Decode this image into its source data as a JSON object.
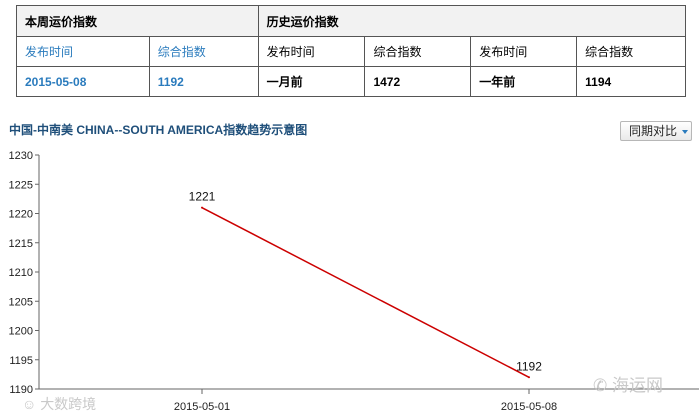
{
  "table": {
    "weekly_header": "本周运价指数",
    "history_header": "历史运价指数",
    "col_publish_time": "发布时间",
    "col_index": "综合指数",
    "current_date": "2015-05-08",
    "current_index": "1192",
    "month_ago_label": "一月前",
    "month_ago_index": "1472",
    "year_ago_label": "一年前",
    "year_ago_index": "1194"
  },
  "chart_header": {
    "title": "中国-中南美 CHINA--SOUTH AMERICA指数趋势示意图",
    "compare_button": "同期对比"
  },
  "chart_data": {
    "type": "line",
    "title": "中国-中南美 CHINA--SOUTH AMERICA指数趋势示意图",
    "x": [
      "2015-05-01",
      "2015-05-08"
    ],
    "series": [
      {
        "values": [
          1221,
          1192
        ],
        "color": "#cc0000"
      }
    ],
    "data_labels": [
      "1221",
      "1192"
    ],
    "ylim": [
      1190,
      1230
    ],
    "yticks": [
      1190,
      1195,
      1200,
      1205,
      1210,
      1215,
      1220,
      1225,
      1230
    ],
    "grid": false,
    "legend": "none"
  },
  "watermarks": {
    "left": "大数跨境",
    "right": "海运网"
  }
}
